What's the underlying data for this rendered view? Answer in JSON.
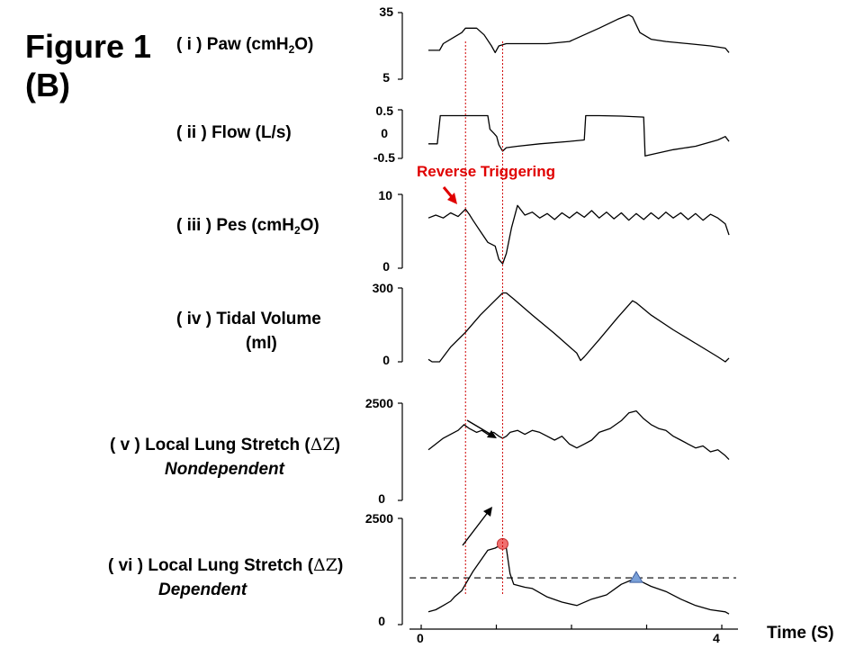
{
  "figure": {
    "title_line1": "Figure 1",
    "title_line2": "(B)"
  },
  "chart_data": {
    "type": "line",
    "x_axis": {
      "label": "Time (S)",
      "unit": "s",
      "range": [
        0,
        4
      ],
      "ticks": [
        "0",
        "4"
      ]
    },
    "panels": [
      {
        "id": "paw",
        "numeral": "( i ) ",
        "label_pre": "Paw (cmH",
        "label_sub": "2",
        "label_post": "O)",
        "yrange": [
          5,
          35
        ],
        "ymin_label": "5",
        "ymax_label": "35",
        "series": [
          [
            0,
            18
          ],
          [
            0.15,
            18
          ],
          [
            0.2,
            21
          ],
          [
            0.35,
            24
          ],
          [
            0.45,
            26
          ],
          [
            0.5,
            28
          ],
          [
            0.65,
            28
          ],
          [
            0.75,
            25
          ],
          [
            0.85,
            20
          ],
          [
            0.9,
            17
          ],
          [
            0.95,
            20
          ],
          [
            1.05,
            21
          ],
          [
            1.2,
            21
          ],
          [
            1.4,
            21
          ],
          [
            1.6,
            21
          ],
          [
            1.9,
            22
          ],
          [
            2.1,
            25
          ],
          [
            2.3,
            28
          ],
          [
            2.55,
            32
          ],
          [
            2.7,
            34
          ],
          [
            2.75,
            33
          ],
          [
            2.85,
            26
          ],
          [
            3.0,
            23
          ],
          [
            3.2,
            22
          ],
          [
            3.5,
            21
          ],
          [
            3.8,
            20
          ],
          [
            4.0,
            19
          ],
          [
            4.05,
            17
          ]
        ]
      },
      {
        "id": "flow",
        "numeral": "( ii ) ",
        "label_text": "Flow (L/s)",
        "yrange": [
          -0.5,
          0.5
        ],
        "ymin_label": "-0.5",
        "zero_label": "0",
        "ymax_label": "0.5",
        "series": [
          [
            0,
            -0.2
          ],
          [
            0.12,
            -0.2
          ],
          [
            0.16,
            0.38
          ],
          [
            0.3,
            0.38
          ],
          [
            0.5,
            0.38
          ],
          [
            0.8,
            0.38
          ],
          [
            0.83,
            0.1
          ],
          [
            0.88,
            0.02
          ],
          [
            0.92,
            -0.05
          ],
          [
            0.95,
            -0.22
          ],
          [
            1.0,
            -0.35
          ],
          [
            1.05,
            -0.28
          ],
          [
            1.2,
            -0.25
          ],
          [
            1.5,
            -0.2
          ],
          [
            1.9,
            -0.15
          ],
          [
            2.1,
            -0.12
          ],
          [
            2.12,
            0.38
          ],
          [
            2.3,
            0.38
          ],
          [
            2.6,
            0.37
          ],
          [
            2.9,
            0.35
          ],
          [
            2.92,
            -0.45
          ],
          [
            3.0,
            -0.42
          ],
          [
            3.3,
            -0.32
          ],
          [
            3.6,
            -0.25
          ],
          [
            3.9,
            -0.12
          ],
          [
            4.0,
            -0.05
          ],
          [
            4.05,
            -0.15
          ]
        ]
      },
      {
        "id": "pes",
        "numeral": "( iii ) ",
        "label_pre": "Pes (cmH",
        "label_sub": "2",
        "label_post": "O)",
        "yrange": [
          0,
          10
        ],
        "ymin_label": "0",
        "ymax_label": "10",
        "annotation": "Reverse Triggering",
        "series": [
          [
            0,
            6.8
          ],
          [
            0.1,
            7.2
          ],
          [
            0.2,
            6.8
          ],
          [
            0.3,
            7.5
          ],
          [
            0.4,
            7.0
          ],
          [
            0.5,
            8.0
          ],
          [
            0.55,
            7.3
          ],
          [
            0.6,
            6.5
          ],
          [
            0.7,
            5.0
          ],
          [
            0.8,
            3.5
          ],
          [
            0.9,
            3.0
          ],
          [
            0.95,
            1.2
          ],
          [
            1.0,
            0.6
          ],
          [
            1.05,
            2.0
          ],
          [
            1.12,
            5.5
          ],
          [
            1.2,
            8.5
          ],
          [
            1.3,
            7.2
          ],
          [
            1.4,
            7.6
          ],
          [
            1.5,
            6.8
          ],
          [
            1.6,
            7.4
          ],
          [
            1.7,
            6.6
          ],
          [
            1.8,
            7.5
          ],
          [
            1.9,
            6.8
          ],
          [
            2.0,
            7.6
          ],
          [
            2.1,
            6.9
          ],
          [
            2.2,
            7.8
          ],
          [
            2.3,
            6.8
          ],
          [
            2.4,
            7.6
          ],
          [
            2.5,
            6.7
          ],
          [
            2.6,
            7.5
          ],
          [
            2.7,
            6.5
          ],
          [
            2.8,
            7.4
          ],
          [
            2.9,
            6.6
          ],
          [
            3.0,
            7.5
          ],
          [
            3.1,
            6.7
          ],
          [
            3.2,
            7.6
          ],
          [
            3.3,
            6.8
          ],
          [
            3.4,
            7.5
          ],
          [
            3.5,
            6.6
          ],
          [
            3.6,
            7.4
          ],
          [
            3.7,
            6.5
          ],
          [
            3.8,
            7.3
          ],
          [
            3.9,
            6.8
          ],
          [
            4.0,
            6.0
          ],
          [
            4.05,
            4.5
          ]
        ]
      },
      {
        "id": "vt",
        "numeral": "( iv ) ",
        "label_line1": "Tidal Volume",
        "label_line2": "(ml)",
        "yrange": [
          0,
          300
        ],
        "ymin_label": "0",
        "ymax_label": "300",
        "series": [
          [
            0,
            10
          ],
          [
            0.05,
            0
          ],
          [
            0.15,
            0
          ],
          [
            0.3,
            60
          ],
          [
            0.5,
            120
          ],
          [
            0.7,
            190
          ],
          [
            0.9,
            250
          ],
          [
            1.0,
            280
          ],
          [
            1.05,
            280
          ],
          [
            1.15,
            255
          ],
          [
            1.4,
            190
          ],
          [
            1.7,
            115
          ],
          [
            2.0,
            35
          ],
          [
            2.05,
            5
          ],
          [
            2.1,
            20
          ],
          [
            2.3,
            90
          ],
          [
            2.55,
            180
          ],
          [
            2.75,
            248
          ],
          [
            2.8,
            240
          ],
          [
            3.0,
            190
          ],
          [
            3.3,
            130
          ],
          [
            3.6,
            75
          ],
          [
            3.9,
            20
          ],
          [
            4.0,
            0
          ],
          [
            4.05,
            15
          ]
        ]
      },
      {
        "id": "nd",
        "numeral": "( v ) ",
        "label_pre": "Local Lung Stretch (",
        "label_delta": "ΔZ",
        "label_post": ")",
        "label_sub2": "Nondependent",
        "yrange": [
          0,
          2500
        ],
        "ymin_label": "0",
        "ymax_label": "2500",
        "series": [
          [
            0,
            1300
          ],
          [
            0.1,
            1450
          ],
          [
            0.2,
            1600
          ],
          [
            0.3,
            1700
          ],
          [
            0.4,
            1800
          ],
          [
            0.48,
            1950
          ],
          [
            0.55,
            1850
          ],
          [
            0.65,
            1750
          ],
          [
            0.72,
            1800
          ],
          [
            0.8,
            1700
          ],
          [
            0.88,
            1750
          ],
          [
            0.95,
            1650
          ],
          [
            1.0,
            1600
          ],
          [
            1.05,
            1650
          ],
          [
            1.1,
            1750
          ],
          [
            1.2,
            1800
          ],
          [
            1.3,
            1700
          ],
          [
            1.4,
            1800
          ],
          [
            1.5,
            1750
          ],
          [
            1.6,
            1650
          ],
          [
            1.7,
            1550
          ],
          [
            1.8,
            1650
          ],
          [
            1.9,
            1450
          ],
          [
            2.0,
            1350
          ],
          [
            2.1,
            1450
          ],
          [
            2.2,
            1550
          ],
          [
            2.3,
            1750
          ],
          [
            2.45,
            1850
          ],
          [
            2.6,
            2050
          ],
          [
            2.7,
            2250
          ],
          [
            2.8,
            2300
          ],
          [
            2.9,
            2100
          ],
          [
            3.0,
            1950
          ],
          [
            3.1,
            1850
          ],
          [
            3.2,
            1800
          ],
          [
            3.3,
            1650
          ],
          [
            3.4,
            1550
          ],
          [
            3.5,
            1450
          ],
          [
            3.6,
            1350
          ],
          [
            3.7,
            1400
          ],
          [
            3.8,
            1250
          ],
          [
            3.9,
            1300
          ],
          [
            4.0,
            1150
          ],
          [
            4.05,
            1050
          ]
        ]
      },
      {
        "id": "dep",
        "numeral": "( vi ) ",
        "label_pre": "Local Lung Stretch (",
        "label_delta": "ΔZ",
        "label_post": ")",
        "label_sub2": "Dependent",
        "yrange": [
          0,
          2500
        ],
        "ymin_label": "0",
        "ymax_label": "2500",
        "threshold": 1100,
        "peak_marker": {
          "shape": "circle",
          "color": "#f07070",
          "t": 1.0,
          "value": 1900
        },
        "second_marker": {
          "shape": "triangle",
          "color": "#7aa0d8",
          "t": 2.8,
          "value": 1100
        },
        "series": [
          [
            0,
            300
          ],
          [
            0.1,
            350
          ],
          [
            0.2,
            450
          ],
          [
            0.3,
            550
          ],
          [
            0.35,
            650
          ],
          [
            0.45,
            800
          ],
          [
            0.6,
            1250
          ],
          [
            0.8,
            1750
          ],
          [
            0.9,
            1800
          ],
          [
            1.0,
            1900
          ],
          [
            1.05,
            1800
          ],
          [
            1.1,
            1200
          ],
          [
            1.15,
            950
          ],
          [
            1.3,
            880
          ],
          [
            1.4,
            850
          ],
          [
            1.6,
            650
          ],
          [
            1.8,
            530
          ],
          [
            2.0,
            450
          ],
          [
            2.2,
            600
          ],
          [
            2.4,
            700
          ],
          [
            2.6,
            950
          ],
          [
            2.75,
            1060
          ],
          [
            2.85,
            1030
          ],
          [
            3.0,
            900
          ],
          [
            3.2,
            780
          ],
          [
            3.4,
            600
          ],
          [
            3.6,
            450
          ],
          [
            3.8,
            350
          ],
          [
            4.0,
            300
          ],
          [
            4.05,
            250
          ]
        ]
      }
    ],
    "event_markers_t": [
      0.5,
      1.0
    ]
  }
}
